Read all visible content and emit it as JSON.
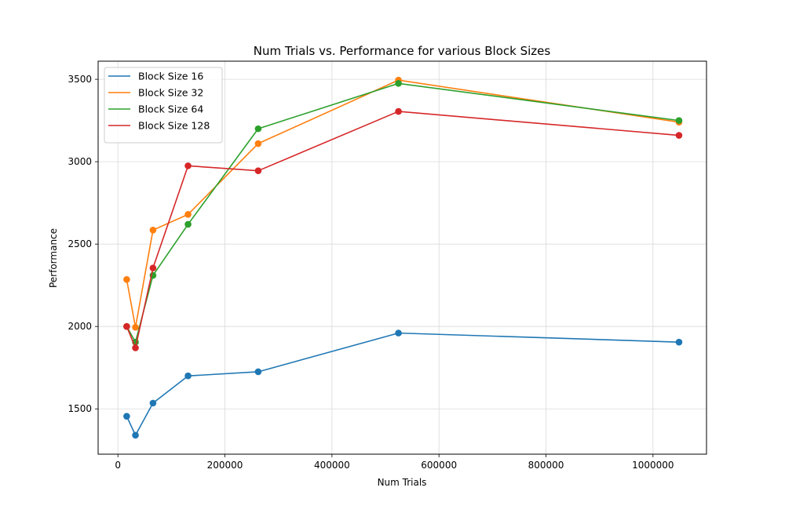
{
  "chart_data": {
    "type": "line",
    "title": "Num Trials vs. Performance for various Block Sizes",
    "xlabel": "Num Trials",
    "ylabel": "Performance",
    "xlim": [
      -37000,
      1100000
    ],
    "ylim": [
      1225,
      3610
    ],
    "xticks": [
      0,
      200000,
      400000,
      600000,
      800000,
      1000000
    ],
    "xtick_labels": [
      "0",
      "200000",
      "400000",
      "600000",
      "800000",
      "1000000"
    ],
    "yticks": [
      1500,
      2000,
      2500,
      3000,
      3500
    ],
    "ytick_labels": [
      "1500",
      "2000",
      "2500",
      "3000",
      "3500"
    ],
    "grid": true,
    "legend_position": "top-left",
    "x": [
      16384,
      32768,
      65536,
      131072,
      262144,
      524288,
      1048576
    ],
    "series": [
      {
        "name": "Block Size 16",
        "color": "#1f77b4",
        "values": [
          1455,
          1340,
          1535,
          1700,
          1725,
          1960,
          1905
        ]
      },
      {
        "name": "Block Size 32",
        "color": "#ff7f0e",
        "values": [
          2285,
          1995,
          2585,
          2680,
          3110,
          3495,
          3240
        ]
      },
      {
        "name": "Block Size 64",
        "color": "#2ca02c",
        "values": [
          2000,
          1905,
          2310,
          2620,
          3200,
          3475,
          3250
        ]
      },
      {
        "name": "Block Size 128",
        "color": "#d62728",
        "values": [
          2000,
          1870,
          2355,
          2975,
          2945,
          3305,
          3160
        ]
      }
    ]
  }
}
